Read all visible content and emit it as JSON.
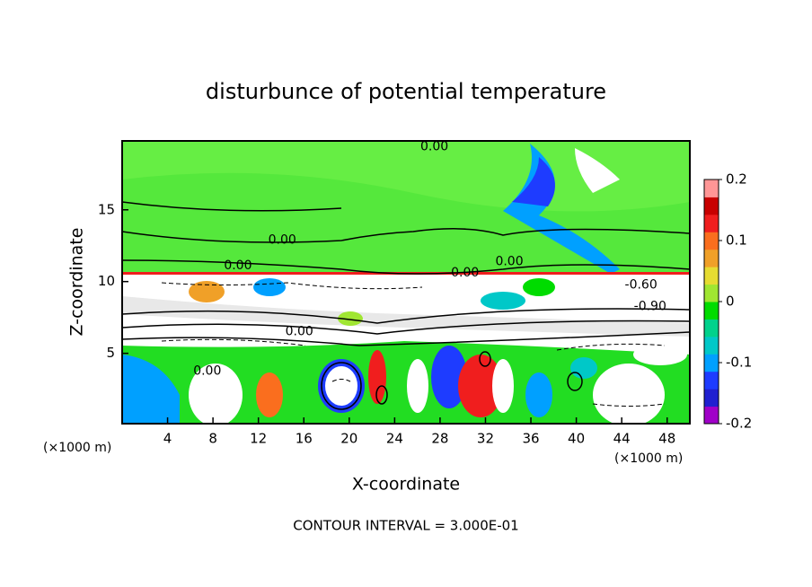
{
  "chart_data": {
    "type": "contour",
    "title": "disturbunce of potential temperature",
    "xlabel": "X-coordinate",
    "ylabel": "Z-coordinate",
    "x_unit": "(×1000 m)",
    "footnote": "CONTOUR INTERVAL = 3.000E-01",
    "xlim": [
      0,
      50
    ],
    "xticks": [
      4,
      8,
      12,
      16,
      20,
      24,
      28,
      32,
      36,
      40,
      44,
      48
    ],
    "ylim": [
      0.1,
      19.8
    ],
    "yticks": [
      5,
      10,
      15
    ],
    "colorbar": {
      "lim": [
        -0.2,
        0.2
      ],
      "ticks": [
        -0.2,
        -0.1,
        0,
        0.1,
        0.2
      ],
      "colors": [
        "#a000c8",
        "#2020d0",
        "#1e3cff",
        "#00a0ff",
        "#00c8c8",
        "#00d28c",
        "#00dc00",
        "#a0e632",
        "#e6dc32",
        "#f0a028",
        "#fa6e1e",
        "#f01e1e",
        "#c80000",
        "#ff9696"
      ]
    },
    "contour_labels": [
      {
        "x": 27.5,
        "y": 19.4,
        "value": 0,
        "label": "0.00"
      },
      {
        "x": 14.1,
        "y": 12.9,
        "value": 0,
        "label": "0.00"
      },
      {
        "x": 10.2,
        "y": 11.1,
        "value": 0,
        "label": "0.00"
      },
      {
        "x": 30.2,
        "y": 10.6,
        "value": 0,
        "label": "0.00"
      },
      {
        "x": 34.1,
        "y": 11.4,
        "value": 0,
        "label": "0.00"
      },
      {
        "x": 45.7,
        "y": 9.75,
        "value": -0.6,
        "label": "-0.60"
      },
      {
        "x": 46.5,
        "y": 8.25,
        "value": -0.9,
        "label": "-0.90"
      },
      {
        "x": 15.6,
        "y": 6.5,
        "value": 0,
        "label": "0.00"
      },
      {
        "x": 7.5,
        "y": 3.75,
        "value": 0,
        "label": "0.00"
      }
    ]
  }
}
